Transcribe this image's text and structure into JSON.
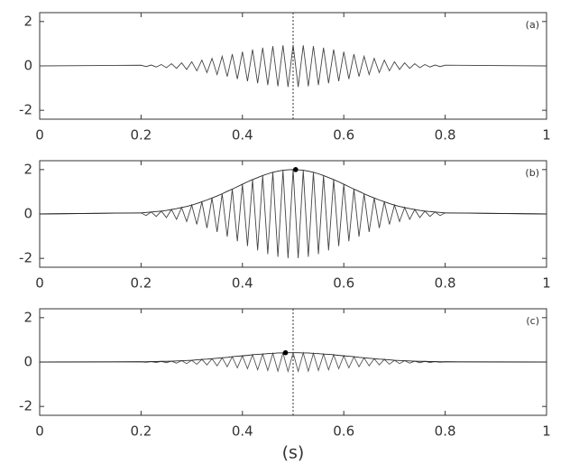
{
  "chart_data": [
    {
      "type": "line",
      "label": "(a)",
      "x": [
        0,
        0.2,
        0.21,
        0.22,
        0.23,
        0.24,
        0.25,
        0.26,
        0.27,
        0.28,
        0.29,
        0.3,
        0.31,
        0.32,
        0.33,
        0.34,
        0.35,
        0.36,
        0.37,
        0.38,
        0.39,
        0.4,
        0.41,
        0.42,
        0.43,
        0.44,
        0.45,
        0.46,
        0.47,
        0.48,
        0.49,
        0.5,
        0.51,
        0.52,
        0.53,
        0.54,
        0.55,
        0.56,
        0.57,
        0.58,
        0.59,
        0.6,
        0.61,
        0.62,
        0.63,
        0.64,
        0.65,
        0.66,
        0.67,
        0.68,
        0.69,
        0.7,
        0.71,
        0.72,
        0.73,
        0.74,
        0.75,
        0.76,
        0.77,
        0.78,
        0.79,
        0.8,
        1
      ],
      "series": [
        {
          "color": "#444444",
          "values": [
            0,
            0.03,
            -0.03,
            0.04,
            -0.05,
            0.06,
            -0.08,
            0.1,
            -0.11,
            0.14,
            -0.16,
            0.19,
            -0.22,
            0.26,
            -0.3,
            0.34,
            -0.39,
            0.43,
            -0.48,
            0.53,
            -0.59,
            0.64,
            -0.69,
            0.74,
            -0.78,
            0.82,
            -0.86,
            0.89,
            -0.92,
            0.93,
            -0.95,
            0.95,
            -0.95,
            0.93,
            -0.92,
            0.89,
            -0.86,
            0.82,
            -0.78,
            0.74,
            -0.69,
            0.64,
            -0.59,
            0.53,
            -0.48,
            0.43,
            -0.39,
            0.34,
            -0.3,
            0.26,
            -0.22,
            0.19,
            -0.16,
            0.14,
            -0.11,
            0.1,
            -0.08,
            0.06,
            -0.05,
            0.04,
            -0.03,
            0.03,
            0
          ]
        }
      ],
      "vline": 0.5,
      "xlim": [
        0,
        1
      ],
      "xticks": [
        0,
        0.2,
        0.4,
        0.6,
        0.8,
        1
      ],
      "ylim": [
        -2.4,
        2.4
      ],
      "yticks": [
        -2,
        0,
        2
      ]
    },
    {
      "type": "line",
      "label": "(b)",
      "x": [
        0,
        0.2,
        0.21,
        0.22,
        0.23,
        0.24,
        0.25,
        0.26,
        0.27,
        0.28,
        0.29,
        0.3,
        0.31,
        0.32,
        0.33,
        0.34,
        0.35,
        0.36,
        0.37,
        0.38,
        0.39,
        0.4,
        0.41,
        0.42,
        0.43,
        0.44,
        0.45,
        0.46,
        0.47,
        0.48,
        0.49,
        0.5,
        0.51,
        0.52,
        0.53,
        0.54,
        0.55,
        0.56,
        0.57,
        0.58,
        0.59,
        0.6,
        0.61,
        0.62,
        0.63,
        0.64,
        0.65,
        0.66,
        0.67,
        0.68,
        0.69,
        0.7,
        0.71,
        0.72,
        0.73,
        0.74,
        0.75,
        0.76,
        0.77,
        0.78,
        0.79,
        0.8,
        1
      ],
      "series": [
        {
          "color": "#444444",
          "values": [
            0,
            0.05,
            -0.07,
            0.09,
            -0.11,
            0.13,
            -0.16,
            0.2,
            -0.24,
            0.29,
            -0.34,
            0.4,
            -0.47,
            0.55,
            -0.63,
            0.72,
            -0.81,
            0.91,
            -1.02,
            1.12,
            -1.23,
            1.34,
            -1.45,
            1.55,
            -1.64,
            1.73,
            -1.81,
            1.88,
            -1.93,
            1.97,
            -1.99,
            2,
            -1.99,
            1.97,
            -1.93,
            1.88,
            -1.81,
            1.73,
            -1.64,
            1.55,
            -1.45,
            1.34,
            -1.23,
            1.12,
            -1.02,
            0.91,
            -0.81,
            0.72,
            -0.63,
            0.55,
            -0.47,
            0.4,
            -0.34,
            0.29,
            -0.24,
            0.2,
            -0.16,
            0.13,
            -0.11,
            0.09,
            -0.07,
            0.05,
            0
          ]
        },
        {
          "color": "#222222",
          "values": [
            0,
            0.05,
            0.07,
            0.09,
            0.11,
            0.13,
            0.16,
            0.2,
            0.24,
            0.29,
            0.34,
            0.4,
            0.47,
            0.55,
            0.63,
            0.72,
            0.81,
            0.91,
            1.02,
            1.12,
            1.23,
            1.34,
            1.45,
            1.55,
            1.64,
            1.73,
            1.81,
            1.88,
            1.93,
            1.97,
            1.99,
            2,
            1.99,
            1.97,
            1.93,
            1.88,
            1.81,
            1.73,
            1.64,
            1.55,
            1.45,
            1.34,
            1.23,
            1.12,
            1.02,
            0.91,
            0.81,
            0.72,
            0.63,
            0.55,
            0.47,
            0.4,
            0.34,
            0.29,
            0.24,
            0.2,
            0.16,
            0.13,
            0.11,
            0.09,
            0.07,
            0.05,
            0
          ]
        }
      ],
      "points": [
        {
          "x": 0.505,
          "y": 2
        }
      ],
      "xlim": [
        0,
        1
      ],
      "xticks": [
        0,
        0.2,
        0.4,
        0.6,
        0.8,
        1
      ],
      "ylim": [
        -2.4,
        2.4
      ],
      "yticks": [
        -2,
        0,
        2
      ]
    },
    {
      "type": "line",
      "label": "(c)",
      "xlabel": "(s)",
      "x": [
        0,
        0.2,
        0.21,
        0.22,
        0.23,
        0.24,
        0.25,
        0.26,
        0.27,
        0.28,
        0.29,
        0.3,
        0.31,
        0.32,
        0.33,
        0.34,
        0.35,
        0.36,
        0.37,
        0.38,
        0.39,
        0.4,
        0.41,
        0.42,
        0.43,
        0.44,
        0.45,
        0.46,
        0.47,
        0.48,
        0.49,
        0.5,
        0.51,
        0.52,
        0.53,
        0.54,
        0.55,
        0.56,
        0.57,
        0.58,
        0.59,
        0.6,
        0.61,
        0.62,
        0.63,
        0.64,
        0.65,
        0.66,
        0.67,
        0.68,
        0.69,
        0.7,
        0.71,
        0.72,
        0.73,
        0.74,
        0.75,
        0.76,
        0.77,
        0.78,
        0.79,
        0.8,
        1
      ],
      "series": [
        {
          "color": "#555555",
          "values": [
            0,
            0.01,
            -0.01,
            0.02,
            -0.02,
            0.03,
            -0.03,
            0.04,
            -0.05,
            0.06,
            -0.07,
            0.08,
            -0.1,
            0.12,
            -0.13,
            0.15,
            -0.17,
            0.19,
            -0.21,
            0.24,
            -0.26,
            0.28,
            -0.3,
            0.33,
            -0.35,
            0.36,
            -0.38,
            0.39,
            -0.41,
            0.41,
            -0.42,
            0.42,
            -0.42,
            0.41,
            -0.41,
            0.39,
            -0.38,
            0.36,
            -0.35,
            0.33,
            -0.3,
            0.28,
            -0.26,
            0.24,
            -0.21,
            0.19,
            -0.17,
            0.15,
            -0.13,
            0.12,
            -0.1,
            0.08,
            -0.07,
            0.06,
            -0.05,
            0.04,
            -0.03,
            0.03,
            -0.02,
            0.02,
            -0.01,
            0.01,
            0
          ]
        },
        {
          "color": "#222222",
          "values": [
            0,
            0.01,
            0.01,
            0.02,
            0.02,
            0.03,
            0.03,
            0.04,
            0.05,
            0.06,
            0.07,
            0.08,
            0.1,
            0.12,
            0.13,
            0.15,
            0.17,
            0.19,
            0.21,
            0.24,
            0.26,
            0.28,
            0.3,
            0.33,
            0.35,
            0.36,
            0.38,
            0.39,
            0.41,
            0.41,
            0.42,
            0.42,
            0.42,
            0.41,
            0.41,
            0.39,
            0.38,
            0.36,
            0.35,
            0.33,
            0.3,
            0.28,
            0.26,
            0.24,
            0.21,
            0.19,
            0.17,
            0.15,
            0.13,
            0.12,
            0.1,
            0.08,
            0.07,
            0.06,
            0.05,
            0.04,
            0.03,
            0.03,
            0.02,
            0.02,
            0.01,
            0.01,
            0
          ]
        }
      ],
      "points": [
        {
          "x": 0.485,
          "y": 0.42
        }
      ],
      "vline": 0.5,
      "xlim": [
        0,
        1
      ],
      "xticks": [
        0,
        0.2,
        0.4,
        0.6,
        0.8,
        1
      ],
      "ylim": [
        -2.4,
        2.4
      ],
      "yticks": [
        -2,
        0,
        2
      ]
    }
  ]
}
